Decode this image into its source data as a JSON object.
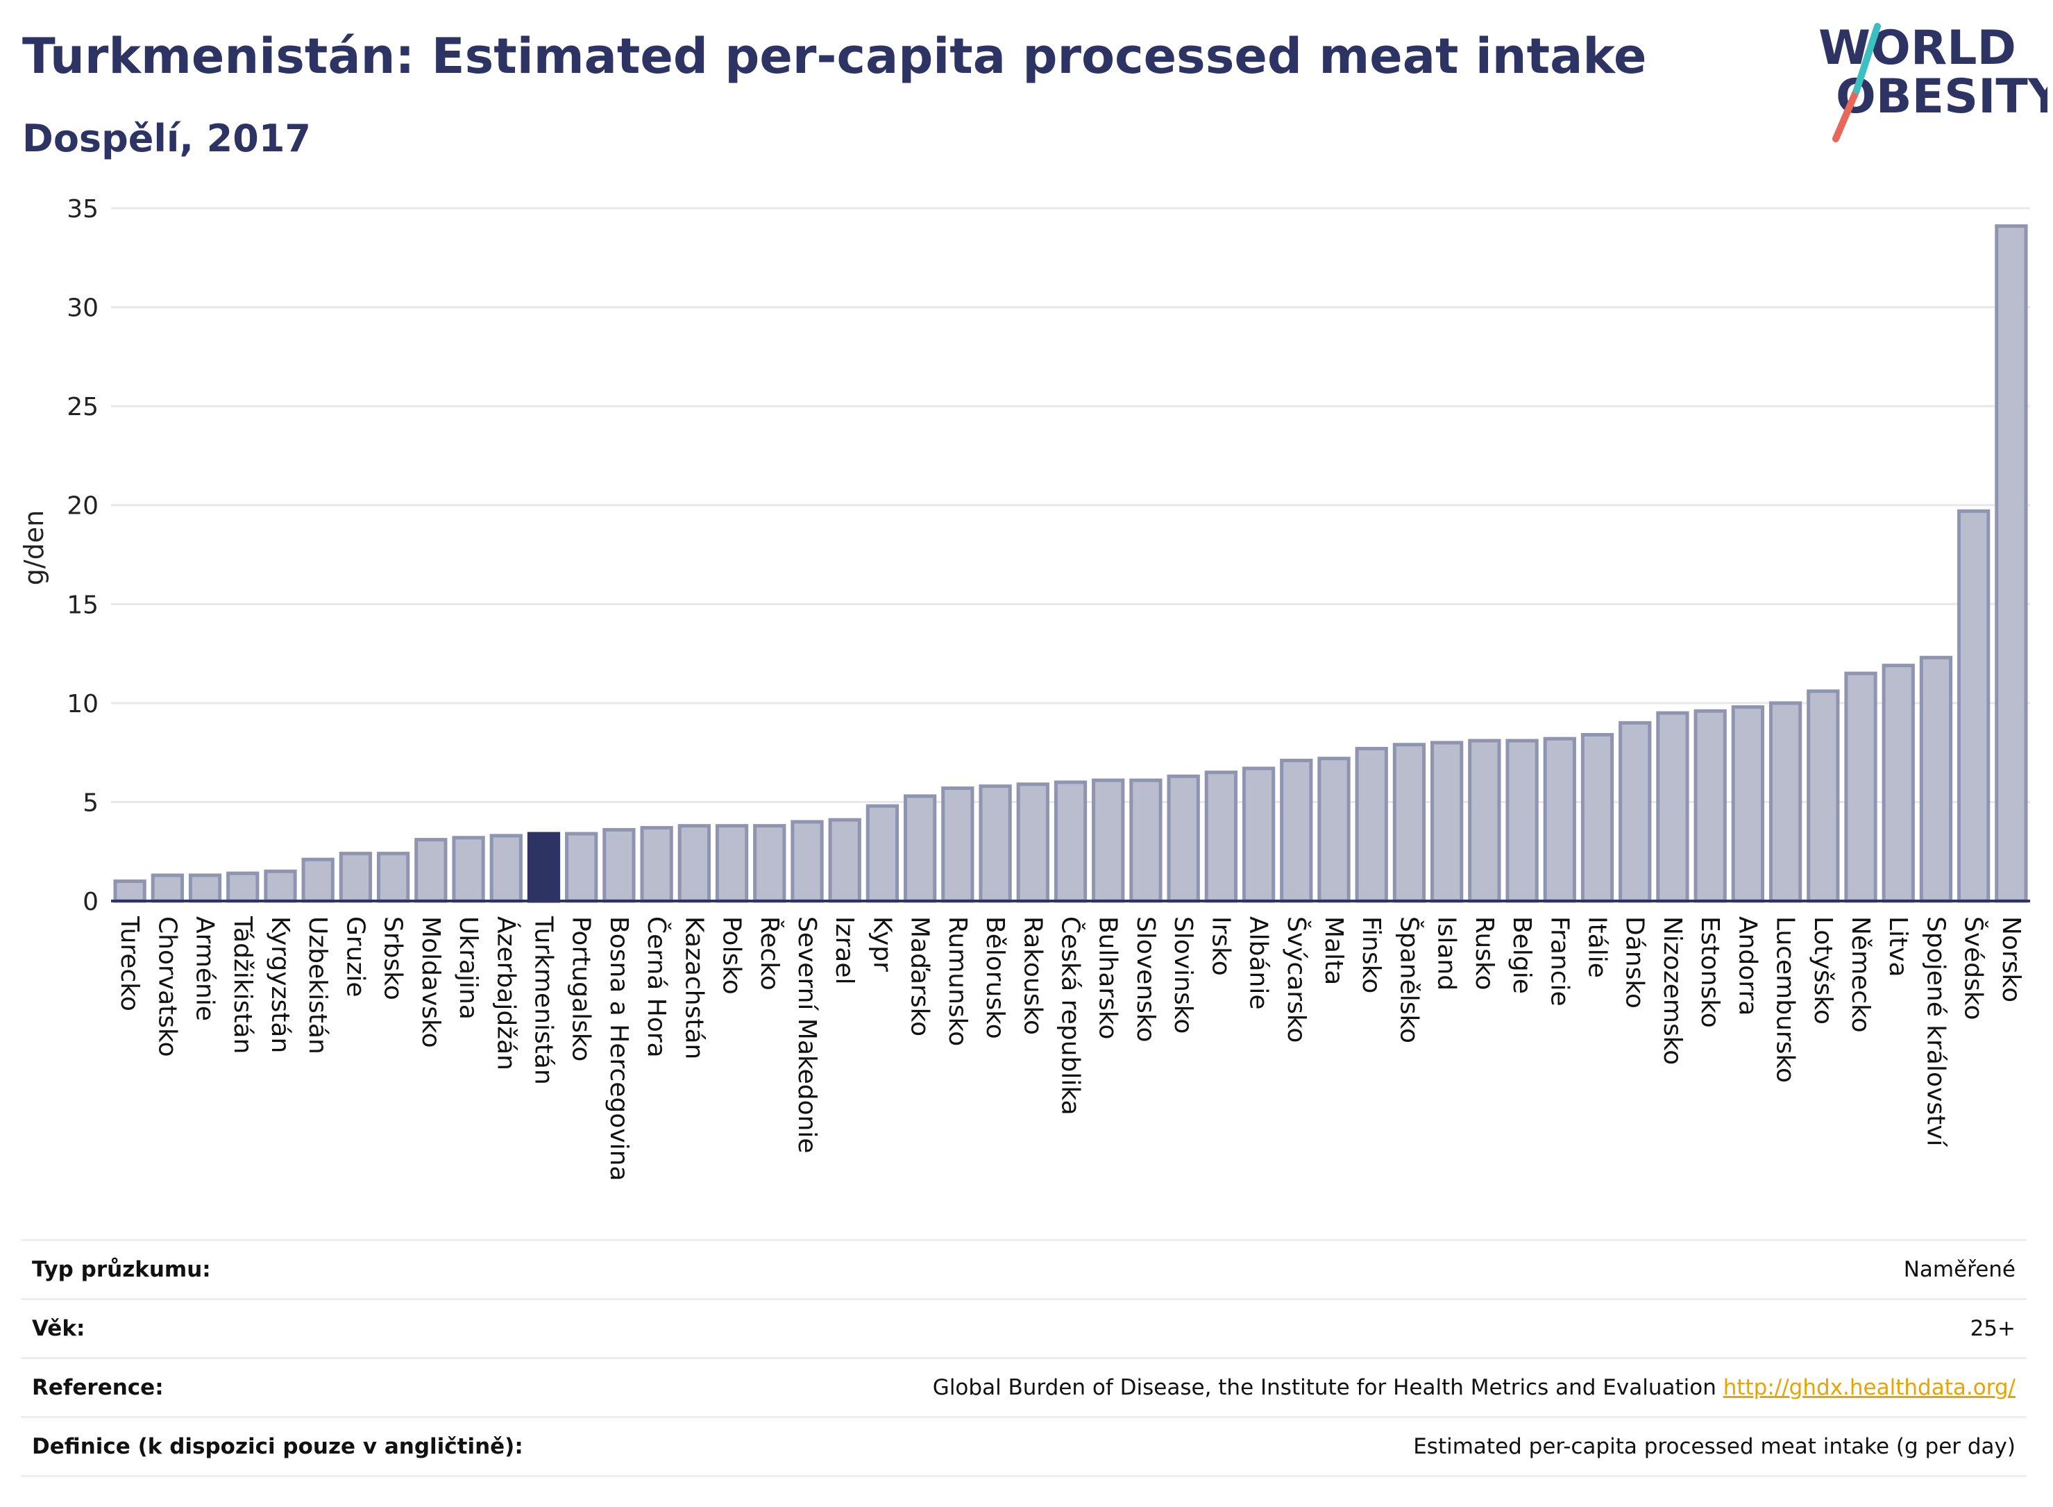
{
  "header": {
    "title": "Turkmenistán: Estimated per-capita processed meat intake",
    "subtitle": "Dospělí, 2017",
    "logo_line1": "WORLD",
    "logo_line2": "OBESITY"
  },
  "colors": {
    "bar": "#b9bdcd",
    "bar_stroke": "#8f94b0",
    "highlight": "#2d3464",
    "logo_teal": "#3bbfc1",
    "logo_red": "#e8675a",
    "link": "#e8a400"
  },
  "chart_data": {
    "type": "bar",
    "title": "Turkmenistán: Estimated per-capita processed meat intake",
    "subtitle": "Dospělí, 2017",
    "xlabel": "",
    "ylabel": "g/den",
    "ylim": [
      0,
      35
    ],
    "yticks": [
      0,
      5,
      10,
      15,
      20,
      25,
      30,
      35
    ],
    "grid": true,
    "highlight": "Turkmenistán",
    "categories": [
      "Turecko",
      "Chorvatsko",
      "Arménie",
      "Tádžikistán",
      "Kyrgyzstán",
      "Uzbekistán",
      "Gruzie",
      "Srbsko",
      "Moldavsko",
      "Ukrajina",
      "Ázerbajdžán",
      "Turkmenistán",
      "Portugalsko",
      "Bosna a Hercegovina",
      "Černá Hora",
      "Kazachstán",
      "Polsko",
      "Řecko",
      "Severní Makedonie",
      "Izrael",
      "Kypr",
      "Maďarsko",
      "Rumunsko",
      "Bělorusko",
      "Rakousko",
      "Česká republika",
      "Bulharsko",
      "Slovensko",
      "Slovinsko",
      "Irsko",
      "Albánie",
      "Švýcarsko",
      "Malta",
      "Finsko",
      "Španělsko",
      "Island",
      "Rusko",
      "Belgie",
      "Francie",
      "Itálie",
      "Dánsko",
      "Nizozemsko",
      "Estonsko",
      "Andorra",
      "Lucembursko",
      "Lotyšsko",
      "Německo",
      "Litva",
      "Spojené království",
      "Švédsko",
      "Norsko"
    ],
    "values": [
      1.0,
      1.3,
      1.3,
      1.4,
      1.5,
      2.1,
      2.4,
      2.4,
      3.1,
      3.2,
      3.3,
      3.4,
      3.4,
      3.6,
      3.7,
      3.8,
      3.8,
      3.8,
      4.0,
      4.1,
      4.8,
      5.3,
      5.7,
      5.8,
      5.9,
      6.0,
      6.1,
      6.1,
      6.3,
      6.5,
      6.7,
      7.1,
      7.2,
      7.7,
      7.9,
      8.0,
      8.1,
      8.1,
      8.2,
      8.4,
      9.0,
      9.5,
      9.6,
      9.8,
      10.0,
      10.6,
      11.5,
      11.9,
      12.3,
      19.7,
      34.1
    ]
  },
  "info": {
    "rows": [
      {
        "label": "Typ průzkumu:",
        "value": "Naměřené",
        "link": ""
      },
      {
        "label": "Věk:",
        "value": "25+",
        "link": ""
      },
      {
        "label": "Reference:",
        "value": "Global Burden of Disease, the Institute for Health Metrics and Evaluation",
        "link": "http://ghdx.healthdata.org/"
      },
      {
        "label": "Definice (k dispozici pouze v angličtině):",
        "value": "Estimated per-capita processed meat intake (g per day)",
        "link": ""
      }
    ]
  }
}
